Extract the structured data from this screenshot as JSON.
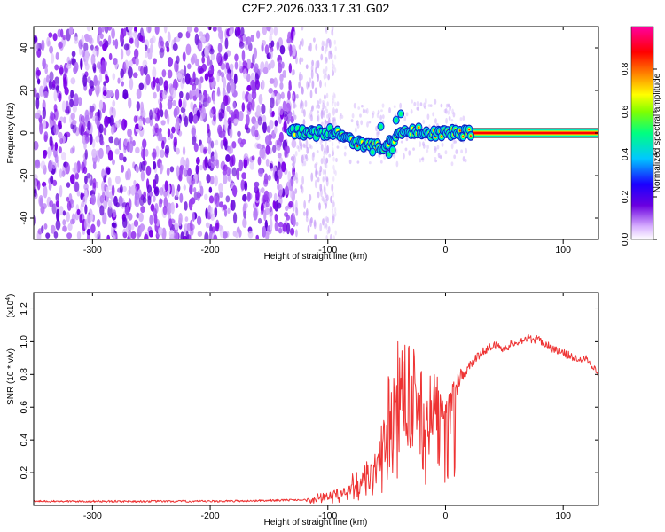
{
  "title": "C2E2.2026.033.17.31.G02",
  "chart_data": [
    {
      "type": "heatmap",
      "xlabel": "Height of straight line (km)",
      "ylabel": "Frequency (Hz)",
      "xlim": [
        -350,
        130
      ],
      "ylim": [
        -50,
        50
      ],
      "xticks": [
        -300,
        -200,
        -100,
        0,
        100
      ],
      "yticks": [
        -40,
        -20,
        0,
        20,
        40
      ],
      "colorbar": {
        "label": "Normalized spectral amplitude",
        "range": [
          0.0,
          1.0
        ],
        "ticks": [
          0.0,
          0.2,
          0.4,
          0.6,
          0.8
        ],
        "tick_labels": [
          "0.0",
          "0.2",
          "0.4",
          "0.6",
          "0.8"
        ],
        "colors": [
          "#ffffff",
          "#d8b0ff",
          "#6a00e0",
          "#1a00ff",
          "#00c8ff",
          "#00ff80",
          "#80ff00",
          "#ffff00",
          "#ff8000",
          "#ff0000",
          "#ff00a0"
        ]
      },
      "ridge": [
        {
          "x": -132,
          "y": 1
        },
        {
          "x": -120,
          "y": 0
        },
        {
          "x": -105,
          "y": 0
        },
        {
          "x": -95,
          "y": 1
        },
        {
          "x": -85,
          "y": -2
        },
        {
          "x": -75,
          "y": -5
        },
        {
          "x": -65,
          "y": -6
        },
        {
          "x": -55,
          "y": -7
        },
        {
          "x": -45,
          "y": -4
        },
        {
          "x": -35,
          "y": 1
        },
        {
          "x": -25,
          "y": 1
        },
        {
          "x": -15,
          "y": 0
        },
        {
          "x": 0,
          "y": 0
        },
        {
          "x": 20,
          "y": 0
        },
        {
          "x": 130,
          "y": 0
        }
      ]
    },
    {
      "type": "line",
      "xlabel": "Height of straight line (km)",
      "ylabel": "SNR (10 * v/v)",
      "yscale_label": "(x10",
      "yscale_exp": "4",
      "yscale_close": ")",
      "xlim": [
        -350,
        130
      ],
      "ylim": [
        0,
        1.3
      ],
      "xticks": [
        -300,
        -200,
        -100,
        0,
        100
      ],
      "yticks": [
        0.2,
        0.4,
        0.6,
        0.8,
        1.0,
        1.2
      ],
      "ytick_labels": [
        "0.2",
        "0.4",
        "0.6",
        "0.8",
        "1.0",
        "1.2"
      ],
      "series": [
        {
          "name": "SNR",
          "color": "#ee3333",
          "x": [
            -350,
            -300,
            -250,
            -200,
            -150,
            -120,
            -100,
            -90,
            -80,
            -70,
            -60,
            -50,
            -45,
            -40,
            -35,
            -30,
            -20,
            -10,
            0,
            10,
            20,
            30,
            40,
            50,
            60,
            70,
            80,
            90,
            100,
            110,
            120,
            130
          ],
          "values": [
            0.025,
            0.025,
            0.025,
            0.025,
            0.03,
            0.035,
            0.05,
            0.08,
            0.1,
            0.18,
            0.25,
            0.45,
            0.6,
            0.75,
            0.7,
            0.65,
            0.62,
            0.6,
            0.6,
            0.72,
            0.85,
            0.93,
            0.98,
            0.96,
            1.0,
            1.02,
            1.01,
            0.96,
            0.93,
            0.9,
            0.9,
            0.8
          ]
        }
      ]
    }
  ]
}
